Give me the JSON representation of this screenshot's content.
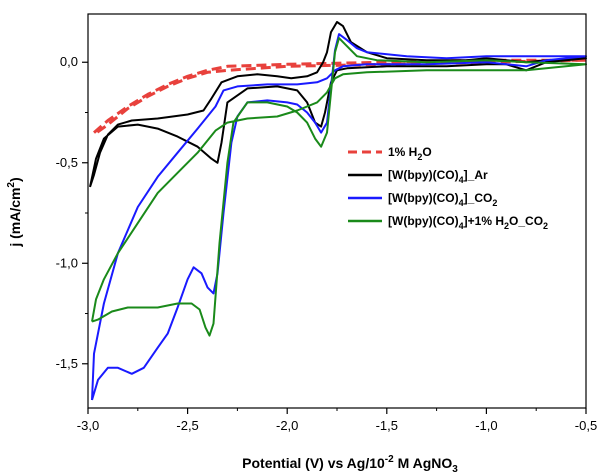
{
  "chart_data": {
    "type": "line",
    "xlabel": "Potential (V) vs Ag/10",
    "xlabel_sup": "-2",
    "xlabel_mid": " M AgNO",
    "xlabel_sub": "3",
    "ylabel": "j (mA/cm",
    "ylabel_sup": "2",
    "ylabel_end": ")",
    "xlim": [
      -3.0,
      -0.5
    ],
    "ylim": [
      -1.72,
      0.24
    ],
    "x_ticks": [
      -3.0,
      -2.5,
      -2.0,
      -1.5,
      -1.0,
      -0.5
    ],
    "x_tick_labels": [
      "-3,0",
      "-2,5",
      "-2,0",
      "-1,5",
      "-1,0",
      "-0,5"
    ],
    "y_ticks": [
      0.0,
      -0.5,
      -1.0,
      -1.5
    ],
    "y_tick_labels": [
      "0,0",
      "-0,5",
      "-1,0",
      "-1,5"
    ],
    "grid": false,
    "legend_position": "right-middle",
    "legend": [
      {
        "prefix": "1% H",
        "sub": "2",
        "suffix": "O",
        "color": "#e8413c",
        "dashed": true
      },
      {
        "prefix": "[W(bpy)(CO)",
        "sub": "4",
        "suffix": "]_Ar",
        "color": "#000000",
        "dashed": false
      },
      {
        "prefix": "[W(bpy)(CO)",
        "sub": "4",
        "suffix": "]_CO",
        "sub2": "2",
        "color": "#1a1aff",
        "dashed": false
      },
      {
        "prefix": "[W(bpy)(CO)",
        "sub": "4",
        "suffix": "]+1% H",
        "sub2": "2",
        "suffix2": "O_CO",
        "sub3": "2",
        "color": "#1a8a1a",
        "dashed": false
      }
    ],
    "series": [
      {
        "color": "#e8413c",
        "dashed": true,
        "points": [
          [
            -2.97,
            -0.35
          ],
          [
            -2.9,
            -0.29
          ],
          [
            -2.8,
            -0.22
          ],
          [
            -2.7,
            -0.16
          ],
          [
            -2.6,
            -0.11
          ],
          [
            -2.5,
            -0.07
          ],
          [
            -2.4,
            -0.04
          ],
          [
            -2.3,
            -0.02
          ],
          [
            -2.0,
            -0.01
          ],
          [
            -1.5,
            0.0
          ],
          [
            -1.0,
            0.01
          ],
          [
            -0.5,
            0.01
          ],
          [
            -1.0,
            0.0
          ],
          [
            -1.5,
            -0.01
          ],
          [
            -2.0,
            -0.02
          ],
          [
            -2.3,
            -0.04
          ],
          [
            -2.4,
            -0.05
          ],
          [
            -2.5,
            -0.08
          ],
          [
            -2.6,
            -0.12
          ],
          [
            -2.7,
            -0.17
          ],
          [
            -2.8,
            -0.23
          ],
          [
            -2.9,
            -0.31
          ],
          [
            -2.97,
            -0.36
          ]
        ]
      },
      {
        "color": "#000000",
        "dashed": false,
        "points": [
          [
            -2.99,
            -0.62
          ],
          [
            -2.97,
            -0.56
          ],
          [
            -2.94,
            -0.45
          ],
          [
            -2.9,
            -0.36
          ],
          [
            -2.85,
            -0.31
          ],
          [
            -2.78,
            -0.29
          ],
          [
            -2.65,
            -0.28
          ],
          [
            -2.5,
            -0.26
          ],
          [
            -2.42,
            -0.24
          ],
          [
            -2.38,
            -0.18
          ],
          [
            -2.33,
            -0.1
          ],
          [
            -2.25,
            -0.07
          ],
          [
            -2.15,
            -0.06
          ],
          [
            -2.05,
            -0.07
          ],
          [
            -1.98,
            -0.08
          ],
          [
            -1.9,
            -0.07
          ],
          [
            -1.85,
            -0.05
          ],
          [
            -1.82,
            0.0
          ],
          [
            -1.8,
            0.05
          ],
          [
            -1.78,
            0.15
          ],
          [
            -1.75,
            0.2
          ],
          [
            -1.72,
            0.18
          ],
          [
            -1.68,
            0.1
          ],
          [
            -1.6,
            0.05
          ],
          [
            -1.5,
            0.02
          ],
          [
            -1.3,
            0.01
          ],
          [
            -1.1,
            0.01
          ],
          [
            -1.0,
            0.02
          ],
          [
            -0.9,
            0.01
          ],
          [
            -0.8,
            0.0
          ],
          [
            -0.7,
            0.01
          ],
          [
            -0.5,
            0.02
          ],
          [
            -0.7,
            0.0
          ],
          [
            -0.8,
            -0.04
          ],
          [
            -0.9,
            -0.01
          ],
          [
            -1.0,
            -0.01
          ],
          [
            -1.2,
            -0.02
          ],
          [
            -1.5,
            -0.02
          ],
          [
            -1.7,
            -0.03
          ],
          [
            -1.75,
            -0.04
          ],
          [
            -1.78,
            -0.1
          ],
          [
            -1.81,
            -0.25
          ],
          [
            -1.83,
            -0.32
          ],
          [
            -1.86,
            -0.3
          ],
          [
            -1.9,
            -0.2
          ],
          [
            -1.95,
            -0.14
          ],
          [
            -2.05,
            -0.12
          ],
          [
            -2.2,
            -0.13
          ],
          [
            -2.3,
            -0.2
          ],
          [
            -2.33,
            -0.4
          ],
          [
            -2.35,
            -0.5
          ],
          [
            -2.38,
            -0.48
          ],
          [
            -2.45,
            -0.42
          ],
          [
            -2.55,
            -0.37
          ],
          [
            -2.65,
            -0.33
          ],
          [
            -2.75,
            -0.31
          ],
          [
            -2.85,
            -0.32
          ],
          [
            -2.92,
            -0.38
          ],
          [
            -2.96,
            -0.48
          ],
          [
            -2.99,
            -0.62
          ]
        ]
      },
      {
        "color": "#1a1aff",
        "dashed": false,
        "points": [
          [
            -2.98,
            -1.68
          ],
          [
            -2.95,
            -1.58
          ],
          [
            -2.9,
            -1.52
          ],
          [
            -2.85,
            -1.52
          ],
          [
            -2.78,
            -1.55
          ],
          [
            -2.72,
            -1.52
          ],
          [
            -2.65,
            -1.42
          ],
          [
            -2.6,
            -1.35
          ],
          [
            -2.55,
            -1.22
          ],
          [
            -2.5,
            -1.08
          ],
          [
            -2.47,
            -1.02
          ],
          [
            -2.43,
            -1.05
          ],
          [
            -2.4,
            -1.12
          ],
          [
            -2.37,
            -1.15
          ],
          [
            -2.35,
            -1.05
          ],
          [
            -2.32,
            -0.75
          ],
          [
            -2.28,
            -0.4
          ],
          [
            -2.25,
            -0.27
          ],
          [
            -2.2,
            -0.2
          ],
          [
            -2.1,
            -0.19
          ],
          [
            -2.0,
            -0.2
          ],
          [
            -1.95,
            -0.21
          ],
          [
            -1.9,
            -0.25
          ],
          [
            -1.86,
            -0.3
          ],
          [
            -1.83,
            -0.35
          ],
          [
            -1.8,
            -0.3
          ],
          [
            -1.78,
            -0.12
          ],
          [
            -1.76,
            0.06
          ],
          [
            -1.74,
            0.14
          ],
          [
            -1.7,
            0.11
          ],
          [
            -1.65,
            0.07
          ],
          [
            -1.6,
            0.05
          ],
          [
            -1.4,
            0.03
          ],
          [
            -1.2,
            0.02
          ],
          [
            -1.0,
            0.03
          ],
          [
            -0.5,
            0.03
          ],
          [
            -0.7,
            0.01
          ],
          [
            -0.8,
            -0.02
          ],
          [
            -1.0,
            0.0
          ],
          [
            -1.3,
            -0.01
          ],
          [
            -1.6,
            -0.01
          ],
          [
            -1.72,
            -0.02
          ],
          [
            -1.76,
            -0.04
          ],
          [
            -1.8,
            -0.08
          ],
          [
            -1.85,
            -0.1
          ],
          [
            -1.95,
            -0.11
          ],
          [
            -2.1,
            -0.11
          ],
          [
            -2.25,
            -0.12
          ],
          [
            -2.32,
            -0.14
          ],
          [
            -2.36,
            -0.22
          ],
          [
            -2.45,
            -0.33
          ],
          [
            -2.55,
            -0.45
          ],
          [
            -2.65,
            -0.57
          ],
          [
            -2.75,
            -0.72
          ],
          [
            -2.85,
            -0.95
          ],
          [
            -2.92,
            -1.2
          ],
          [
            -2.97,
            -1.45
          ],
          [
            -2.98,
            -1.68
          ]
        ]
      },
      {
        "color": "#1a8a1a",
        "dashed": false,
        "points": [
          [
            -2.98,
            -1.29
          ],
          [
            -2.95,
            -1.28
          ],
          [
            -2.88,
            -1.24
          ],
          [
            -2.8,
            -1.22
          ],
          [
            -2.65,
            -1.22
          ],
          [
            -2.55,
            -1.2
          ],
          [
            -2.48,
            -1.2
          ],
          [
            -2.44,
            -1.23
          ],
          [
            -2.41,
            -1.32
          ],
          [
            -2.39,
            -1.36
          ],
          [
            -2.37,
            -1.3
          ],
          [
            -2.34,
            -0.9
          ],
          [
            -2.3,
            -0.5
          ],
          [
            -2.27,
            -0.3
          ],
          [
            -2.2,
            -0.2
          ],
          [
            -2.1,
            -0.2
          ],
          [
            -2.0,
            -0.22
          ],
          [
            -1.95,
            -0.25
          ],
          [
            -1.9,
            -0.3
          ],
          [
            -1.86,
            -0.38
          ],
          [
            -1.83,
            -0.42
          ],
          [
            -1.8,
            -0.35
          ],
          [
            -1.78,
            -0.15
          ],
          [
            -1.76,
            0.05
          ],
          [
            -1.74,
            0.12
          ],
          [
            -1.7,
            0.08
          ],
          [
            -1.65,
            0.03
          ],
          [
            -1.55,
            0.01
          ],
          [
            -1.3,
            0.0
          ],
          [
            -1.0,
            0.01
          ],
          [
            -0.8,
            0.0
          ],
          [
            -0.5,
            -0.01
          ],
          [
            -0.8,
            -0.04
          ],
          [
            -1.0,
            -0.04
          ],
          [
            -1.3,
            -0.04
          ],
          [
            -1.6,
            -0.05
          ],
          [
            -1.72,
            -0.06
          ],
          [
            -1.76,
            -0.08
          ],
          [
            -1.8,
            -0.15
          ],
          [
            -1.85,
            -0.2
          ],
          [
            -1.95,
            -0.24
          ],
          [
            -2.05,
            -0.27
          ],
          [
            -2.2,
            -0.28
          ],
          [
            -2.3,
            -0.3
          ],
          [
            -2.36,
            -0.34
          ],
          [
            -2.45,
            -0.45
          ],
          [
            -2.55,
            -0.55
          ],
          [
            -2.65,
            -0.65
          ],
          [
            -2.75,
            -0.8
          ],
          [
            -2.85,
            -0.95
          ],
          [
            -2.92,
            -1.08
          ],
          [
            -2.96,
            -1.18
          ],
          [
            -2.98,
            -1.29
          ]
        ]
      }
    ]
  }
}
